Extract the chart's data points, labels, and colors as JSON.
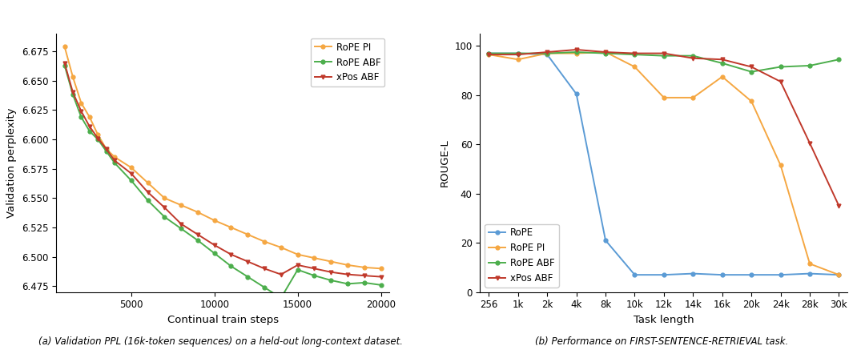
{
  "left": {
    "xlabel": "Continual train steps",
    "ylabel": "Validation perplexity",
    "xlim": [
      500,
      20500
    ],
    "ylim": [
      6.47,
      6.69
    ],
    "yticks": [
      6.475,
      6.5,
      6.525,
      6.55,
      6.575,
      6.6,
      6.625,
      6.65,
      6.675
    ],
    "xticks": [
      5000,
      10000,
      15000,
      20000
    ],
    "series": {
      "RoPE PI": {
        "color": "#f5a742",
        "marker": "o",
        "x": [
          1000,
          1500,
          2000,
          2500,
          3000,
          3500,
          4000,
          5000,
          6000,
          7000,
          8000,
          9000,
          10000,
          11000,
          12000,
          13000,
          14000,
          15000,
          16000,
          17000,
          18000,
          19000,
          20000
        ],
        "y": [
          6.679,
          6.653,
          6.631,
          6.619,
          6.604,
          6.592,
          6.585,
          6.576,
          6.563,
          6.55,
          6.544,
          6.538,
          6.531,
          6.525,
          6.519,
          6.513,
          6.508,
          6.502,
          6.499,
          6.496,
          6.493,
          6.491,
          6.49
        ]
      },
      "RoPE ABF": {
        "color": "#4cae4c",
        "marker": "o",
        "x": [
          1000,
          1500,
          2000,
          2500,
          3000,
          3500,
          4000,
          5000,
          6000,
          7000,
          8000,
          9000,
          10000,
          11000,
          12000,
          13000,
          14000,
          15000,
          16000,
          17000,
          18000,
          19000,
          20000
        ],
        "y": [
          6.663,
          6.638,
          6.619,
          6.607,
          6.6,
          6.59,
          6.58,
          6.565,
          6.548,
          6.534,
          6.524,
          6.514,
          6.503,
          6.492,
          6.483,
          6.474,
          6.465,
          6.489,
          6.484,
          6.48,
          6.477,
          6.478,
          6.476
        ]
      },
      "xPos ABF": {
        "color": "#c0392b",
        "marker": "v",
        "x": [
          1000,
          1500,
          2000,
          2500,
          3000,
          3500,
          4000,
          5000,
          6000,
          7000,
          8000,
          9000,
          10000,
          11000,
          12000,
          13000,
          14000,
          15000,
          16000,
          17000,
          18000,
          19000,
          20000
        ],
        "y": [
          6.665,
          6.64,
          6.624,
          6.611,
          6.601,
          6.592,
          6.582,
          6.571,
          6.555,
          6.542,
          6.528,
          6.519,
          6.51,
          6.502,
          6.496,
          6.49,
          6.485,
          6.493,
          6.49,
          6.487,
          6.485,
          6.484,
          6.483
        ]
      }
    }
  },
  "right": {
    "xlabel": "Task length",
    "ylabel": "ROUGE-L",
    "xlim_labels": [
      "256",
      "1k",
      "2k",
      "4k",
      "8k",
      "10k",
      "12k",
      "14k",
      "16k",
      "20k",
      "24k",
      "28k",
      "30k"
    ],
    "ylim": [
      0,
      105
    ],
    "yticks": [
      0,
      20,
      40,
      60,
      80,
      100
    ],
    "series": {
      "RoPE": {
        "color": "#5b9bd5",
        "marker": "o",
        "y": [
          97.0,
          97.0,
          96.5,
          80.5,
          21.0,
          7.0,
          7.0,
          7.5,
          7.0,
          7.0,
          7.0,
          7.5,
          7.0
        ]
      },
      "RoPE PI": {
        "color": "#f5a742",
        "marker": "o",
        "y": [
          96.5,
          94.5,
          97.0,
          97.0,
          97.5,
          91.5,
          79.0,
          79.0,
          87.5,
          77.5,
          51.5,
          11.5,
          7.0
        ]
      },
      "RoPE ABF": {
        "color": "#4cae4c",
        "marker": "o",
        "y": [
          97.0,
          97.0,
          97.0,
          97.5,
          97.0,
          96.5,
          96.0,
          96.0,
          93.0,
          89.5,
          91.5,
          92.0,
          94.5
        ]
      },
      "xPos ABF": {
        "color": "#c0392b",
        "marker": "v",
        "y": [
          96.5,
          96.5,
          97.5,
          98.5,
          97.5,
          97.0,
          97.0,
          95.0,
          94.5,
          91.5,
          85.5,
          60.5,
          35.0
        ]
      }
    }
  },
  "figure_caption_a": "(a) Validation PPL (16k-token sequences) on a held-out long-context dataset.",
  "figure_caption_b_pre": "(b) Performance on ",
  "figure_caption_b_code": "First-Sentence-Retrieval",
  "figure_caption_b_post": " task."
}
